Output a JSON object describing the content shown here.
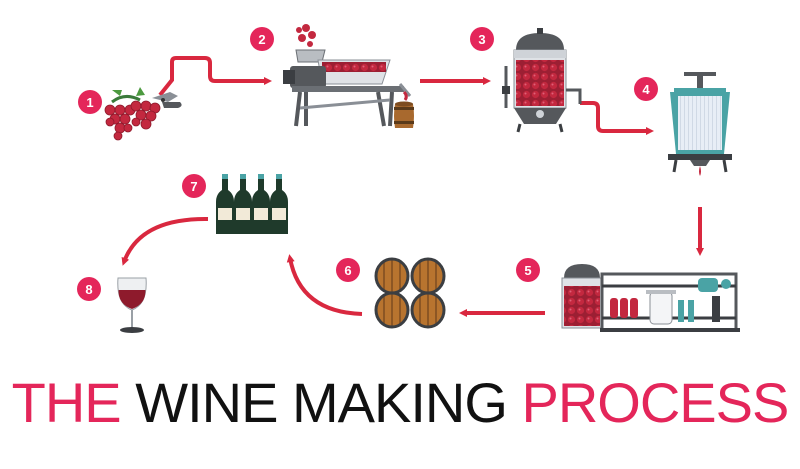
{
  "title": {
    "part1": "THE",
    "part2": "WINE MAKING",
    "part3": "PROCESS"
  },
  "steps": [
    "1",
    "2",
    "3",
    "4",
    "5",
    "6",
    "7",
    "8"
  ],
  "colors": {
    "accent": "#e4265a",
    "arrow": "#d9283f",
    "grape": "#b8233a",
    "grape_dark": "#8e1a2c",
    "machine_gray": "#55585c",
    "machine_dark": "#3b3e42",
    "wood": "#a8692e",
    "bottle": "#1f3a2b",
    "teal": "#4aa3a5",
    "text_dark": "#111111"
  },
  "icons": [
    "grape-bunch-and-shears-icon",
    "crusher-destemmer-icon",
    "fermentation-tank-icon",
    "wine-press-icon",
    "filtration-system-icon",
    "oak-barrels-icon",
    "wine-bottles-icon",
    "wine-glass-icon"
  ]
}
